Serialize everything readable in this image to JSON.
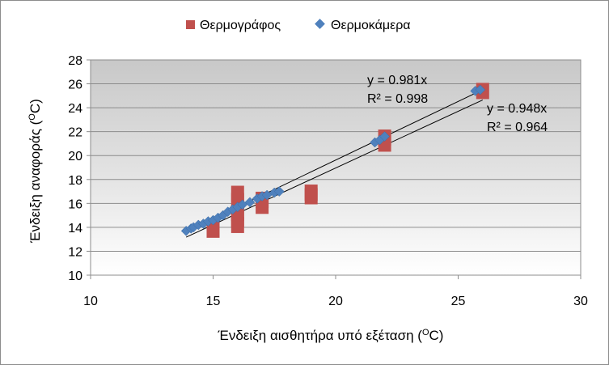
{
  "chart_data": {
    "type": "scatter",
    "title": "",
    "xlabel": "Ένδειξη αισθητήρα υπό εξέταση",
    "xlabel_unit": "(ᴼC)",
    "ylabel": "Ένδειξη αναφοράς",
    "ylabel_unit": "(ᴼC)",
    "xlim": [
      10,
      30
    ],
    "ylim": [
      10,
      28
    ],
    "xticks": [
      "10",
      "15",
      "20",
      "25",
      "30"
    ],
    "yticks": [
      "10",
      "12",
      "14",
      "16",
      "18",
      "20",
      "22",
      "24",
      "26",
      "28"
    ],
    "grid": "horizontal",
    "legend_position": "top",
    "plot_background": "gradient-gray",
    "series": [
      {
        "name": "Θερμογράφος",
        "marker": "square",
        "color": "#c0504d",
        "points": [
          {
            "x": 15,
            "y": 13.8
          },
          {
            "x": 16,
            "y": 14.2
          },
          {
            "x": 16,
            "y": 14.7
          },
          {
            "x": 16,
            "y": 15.2
          },
          {
            "x": 16,
            "y": 16.2
          },
          {
            "x": 16,
            "y": 16.8
          },
          {
            "x": 17,
            "y": 15.8
          },
          {
            "x": 17,
            "y": 16.3
          },
          {
            "x": 19,
            "y": 16.6
          },
          {
            "x": 19,
            "y": 16.9
          },
          {
            "x": 22,
            "y": 21.0
          },
          {
            "x": 22,
            "y": 21.5
          },
          {
            "x": 26,
            "y": 25.4
          }
        ]
      },
      {
        "name": "Θερμοκάμερα",
        "marker": "diamond",
        "color": "#4f81bd",
        "points": [
          {
            "x": 13.9,
            "y": 13.7
          },
          {
            "x": 14.1,
            "y": 13.9
          },
          {
            "x": 14.2,
            "y": 14.0
          },
          {
            "x": 14.4,
            "y": 14.2
          },
          {
            "x": 14.6,
            "y": 14.3
          },
          {
            "x": 14.8,
            "y": 14.5
          },
          {
            "x": 15.0,
            "y": 14.6
          },
          {
            "x": 15.2,
            "y": 14.8
          },
          {
            "x": 15.4,
            "y": 15.0
          },
          {
            "x": 15.6,
            "y": 15.3
          },
          {
            "x": 15.8,
            "y": 15.5
          },
          {
            "x": 16.0,
            "y": 15.7
          },
          {
            "x": 16.2,
            "y": 15.9
          },
          {
            "x": 16.5,
            "y": 16.1
          },
          {
            "x": 16.8,
            "y": 16.4
          },
          {
            "x": 17.0,
            "y": 16.6
          },
          {
            "x": 17.2,
            "y": 16.7
          },
          {
            "x": 17.5,
            "y": 16.9
          },
          {
            "x": 17.7,
            "y": 17.0
          },
          {
            "x": 21.6,
            "y": 21.1
          },
          {
            "x": 21.8,
            "y": 21.3
          },
          {
            "x": 22.0,
            "y": 21.6
          },
          {
            "x": 25.7,
            "y": 25.4
          },
          {
            "x": 25.9,
            "y": 25.5
          }
        ]
      }
    ],
    "trendlines": [
      {
        "series": "Θερμοκάμερα",
        "slope": 0.981,
        "x_range": [
          13.9,
          25.9
        ],
        "equation": "y = 0.981x",
        "r2": "R² = 0.998"
      },
      {
        "series": "Θερμογράφος",
        "slope": 0.948,
        "x_range": [
          13.9,
          26.0
        ],
        "equation": "y = 0.948x",
        "r2": "R² = 0.964"
      }
    ]
  }
}
